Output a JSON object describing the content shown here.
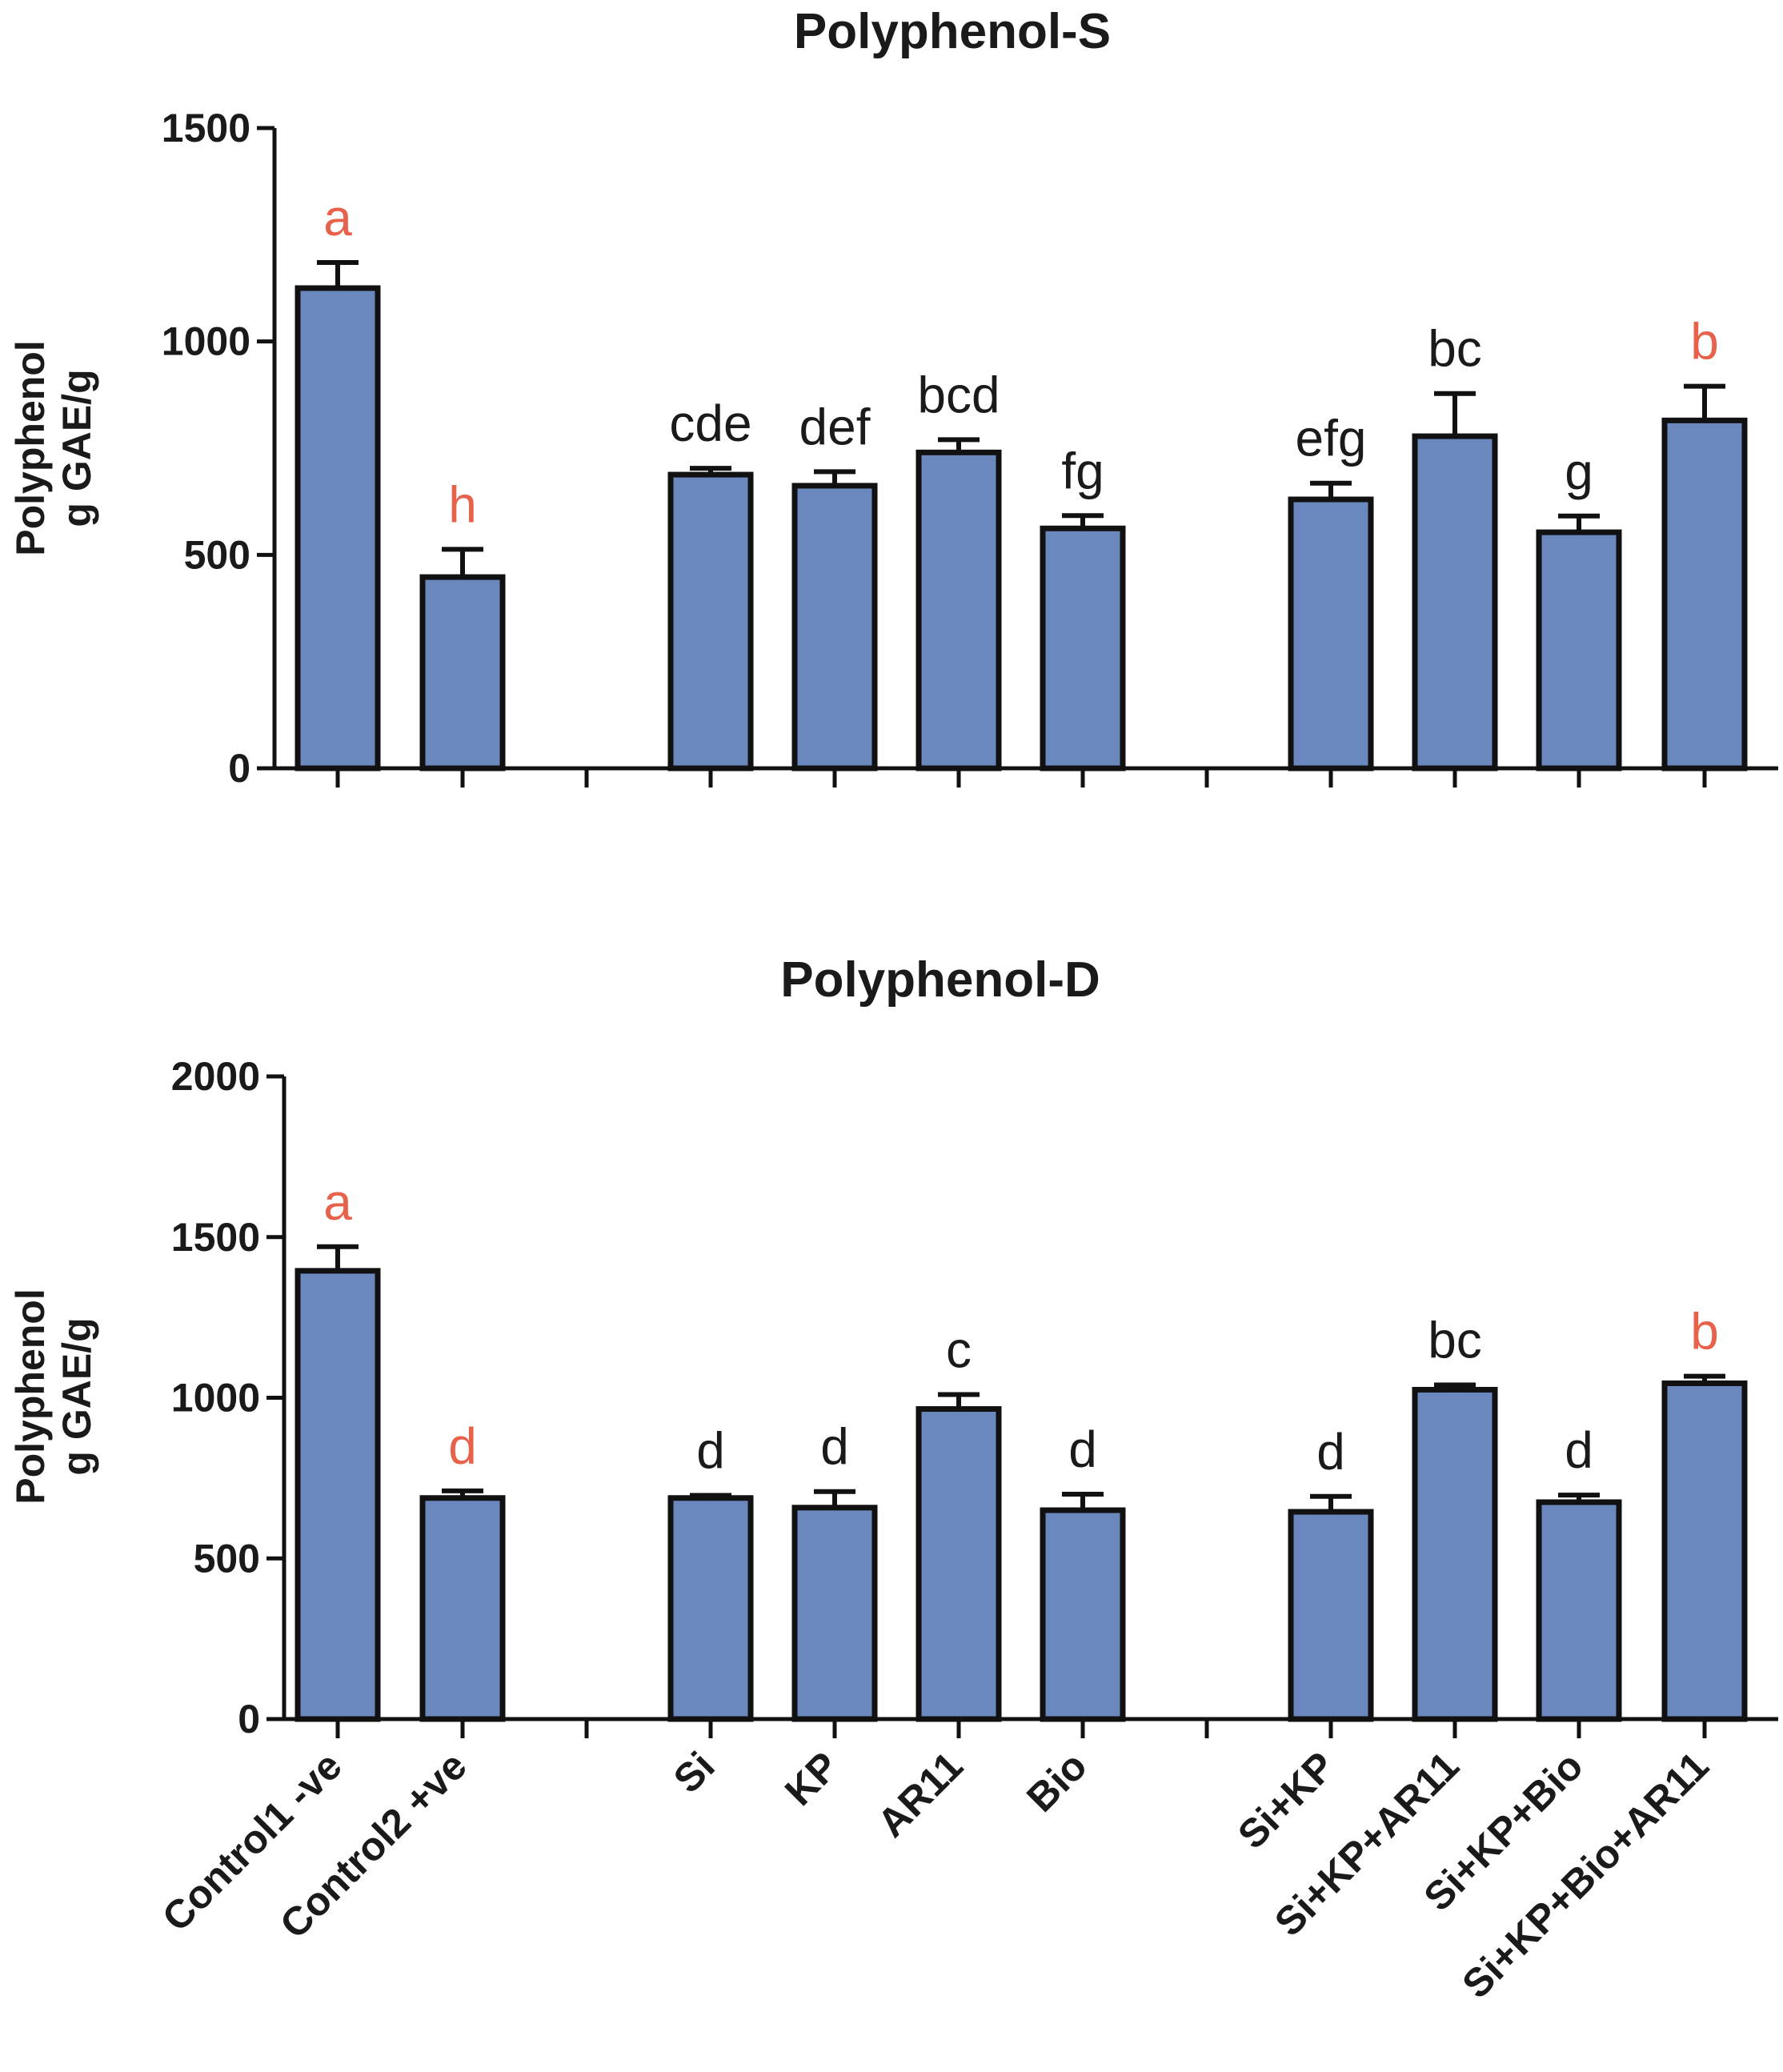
{
  "colors": {
    "bar_fill": "#6a88bd",
    "bar_stroke": "#111111",
    "axis": "#111111",
    "label_default": "#1a1a1a",
    "label_highlight": "#e8614a"
  },
  "chart_data": [
    {
      "type": "bar",
      "title": "Polyphenol-S",
      "ylabel": [
        "Polyphenol",
        "g GAE/g"
      ],
      "ylim": [
        0,
        1500
      ],
      "yticks": [
        0,
        500,
        1000,
        1500
      ],
      "categories": [
        "Control1 -ve",
        "Control2 +ve",
        "Si",
        "KP",
        "AR11",
        "Bio",
        "Si+KP",
        "Si+KP+AR11",
        "Si+KP+Bio",
        "Si+KP+Bio+AR11"
      ],
      "groups": [
        [
          0,
          1
        ],
        [
          2,
          3,
          4,
          5
        ],
        [
          6,
          7,
          8,
          9
        ]
      ],
      "values": [
        1125,
        448,
        688,
        662,
        740,
        562,
        630,
        778,
        553,
        815
      ],
      "errors": [
        60,
        65,
        15,
        33,
        30,
        30,
        38,
        100,
        38,
        80
      ],
      "significance": [
        "a",
        "h",
        "cde",
        "def",
        "bcd",
        "fg",
        "efg",
        "bc",
        "g",
        "b"
      ],
      "highlighted": [
        true,
        true,
        false,
        false,
        false,
        false,
        false,
        false,
        false,
        true
      ],
      "show_category_labels": false
    },
    {
      "type": "bar",
      "title": "Polyphenol-D",
      "ylabel": [
        "Polyphenol",
        "g GAE/g"
      ],
      "ylim": [
        0,
        2000
      ],
      "yticks": [
        0,
        500,
        1000,
        1500,
        2000
      ],
      "categories": [
        "Control1 -ve",
        "Control2 +ve",
        "Si",
        "KP",
        "AR11",
        "Bio",
        "Si+KP",
        "Si+KP+AR11",
        "Si+KP+Bio",
        "Si+KP+Bio+AR11"
      ],
      "groups": [
        [
          0,
          1
        ],
        [
          2,
          3,
          4,
          5
        ],
        [
          6,
          7,
          8,
          9
        ]
      ],
      "values": [
        1395,
        688,
        688,
        658,
        965,
        650,
        645,
        1025,
        675,
        1045
      ],
      "errors": [
        75,
        22,
        8,
        50,
        45,
        50,
        48,
        15,
        22,
        22
      ],
      "significance": [
        "a",
        "d",
        "d",
        "d",
        "c",
        "d",
        "d",
        "bc",
        "d",
        "b"
      ],
      "highlighted": [
        true,
        true,
        false,
        false,
        false,
        false,
        false,
        false,
        false,
        true
      ],
      "show_category_labels": true
    }
  ]
}
